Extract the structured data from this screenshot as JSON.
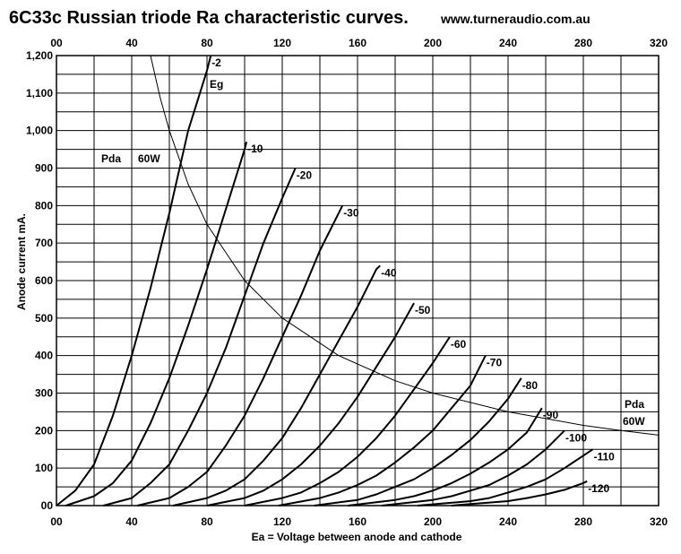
{
  "chart_data": {
    "type": "line",
    "title": "6C33c Russian triode Ra characteristic curves.",
    "website": "www.turneraudio.com.au",
    "xlabel": "Ea = Voltage between anode and cathode",
    "ylabel": "Anode current mA.",
    "xlim": [
      0,
      320
    ],
    "ylim": [
      0,
      1200
    ],
    "grid": true,
    "x_ticks": [
      "00",
      "40",
      "80",
      "120",
      "160",
      "200",
      "240",
      "280",
      "320"
    ],
    "y_ticks": [
      "00",
      "100",
      "200",
      "300",
      "400",
      "500",
      "600",
      "700",
      "800",
      "900",
      "1,000",
      "1,100",
      "1,200"
    ],
    "grid_color": "#000000",
    "line_color": "#000000",
    "series": [
      {
        "name": "-2",
        "x": [
          0,
          10,
          20,
          30,
          40,
          50,
          60,
          70,
          80,
          82
        ],
        "y": [
          0,
          40,
          110,
          240,
          400,
          580,
          780,
          1000,
          1160,
          1200
        ]
      },
      {
        "name": "-10",
        "x": [
          5,
          20,
          30,
          40,
          50,
          60,
          70,
          80,
          90,
          100,
          101
        ],
        "y": [
          0,
          25,
          60,
          120,
          220,
          340,
          480,
          630,
          790,
          950,
          970
        ]
      },
      {
        "name": "-20",
        "x": [
          25,
          40,
          50,
          60,
          70,
          80,
          90,
          100,
          110,
          120,
          127
        ],
        "y": [
          0,
          20,
          60,
          110,
          200,
          300,
          420,
          560,
          700,
          820,
          900
        ]
      },
      {
        "name": "-30",
        "x": [
          43,
          60,
          70,
          80,
          90,
          100,
          110,
          120,
          130,
          140,
          150,
          152
        ],
        "y": [
          0,
          20,
          50,
          90,
          160,
          240,
          340,
          450,
          560,
          680,
          780,
          800
        ]
      },
      {
        "name": "-40",
        "x": [
          62,
          80,
          90,
          100,
          110,
          120,
          130,
          140,
          150,
          160,
          170,
          172
        ],
        "y": [
          0,
          20,
          40,
          70,
          120,
          180,
          260,
          350,
          440,
          530,
          630,
          640
        ]
      },
      {
        "name": "-50",
        "x": [
          80,
          100,
          110,
          120,
          130,
          140,
          150,
          160,
          170,
          180,
          190
        ],
        "y": [
          0,
          20,
          40,
          70,
          110,
          160,
          220,
          290,
          370,
          450,
          540
        ]
      },
      {
        "name": "-60",
        "x": [
          100,
          120,
          130,
          140,
          150,
          160,
          170,
          180,
          190,
          200,
          209
        ],
        "y": [
          0,
          20,
          35,
          60,
          90,
          130,
          180,
          240,
          310,
          380,
          450
        ]
      },
      {
        "name": "-70",
        "x": [
          118,
          140,
          150,
          160,
          170,
          180,
          190,
          200,
          210,
          220,
          228
        ],
        "y": [
          0,
          20,
          35,
          55,
          80,
          115,
          155,
          200,
          260,
          320,
          400
        ]
      },
      {
        "name": "-80",
        "x": [
          137,
          160,
          170,
          180,
          190,
          200,
          210,
          220,
          230,
          240,
          247
        ],
        "y": [
          0,
          15,
          30,
          50,
          70,
          100,
          135,
          175,
          225,
          285,
          340
        ]
      },
      {
        "name": "-90",
        "x": [
          155,
          180,
          190,
          200,
          210,
          220,
          230,
          240,
          250,
          258
        ],
        "y": [
          0,
          15,
          25,
          40,
          60,
          85,
          115,
          150,
          195,
          260
        ]
      },
      {
        "name": "-100",
        "x": [
          173,
          200,
          210,
          220,
          230,
          240,
          250,
          260,
          270
        ],
        "y": [
          0,
          15,
          25,
          40,
          55,
          80,
          110,
          150,
          200
        ]
      },
      {
        "name": "-110",
        "x": [
          192,
          220,
          230,
          240,
          250,
          260,
          270,
          285
        ],
        "y": [
          0,
          12,
          20,
          35,
          50,
          70,
          100,
          150
        ]
      },
      {
        "name": "-120",
        "x": [
          210,
          240,
          250,
          260,
          270,
          280,
          282
        ],
        "y": [
          0,
          12,
          20,
          30,
          42,
          60,
          65
        ]
      },
      {
        "name": "Pda 60W",
        "x": [
          50,
          55,
          60,
          70,
          80,
          100,
          120,
          150,
          180,
          200,
          240,
          280,
          300,
          320
        ],
        "y": [
          1200,
          1090,
          1000,
          857,
          750,
          600,
          500,
          400,
          333,
          300,
          250,
          214,
          200,
          188
        ]
      }
    ],
    "annotations": [
      "Eg",
      "Pda",
      "60W",
      "Pda",
      "60W"
    ]
  }
}
